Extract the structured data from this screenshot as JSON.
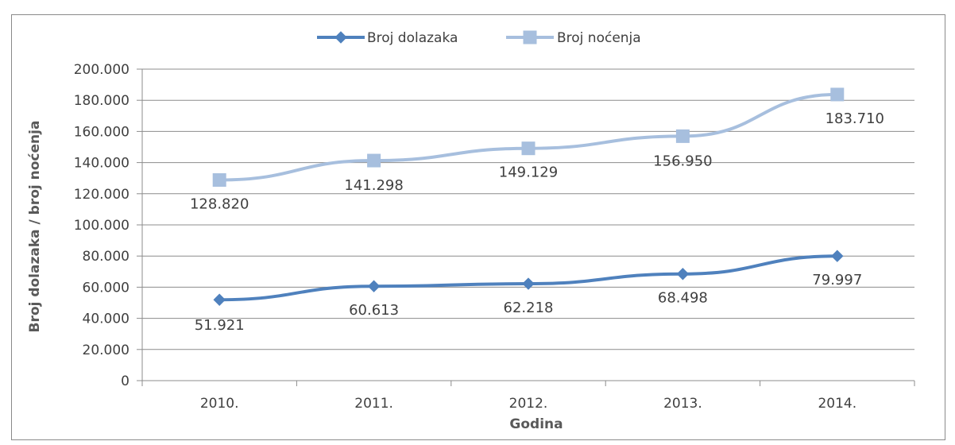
{
  "chart_data": {
    "type": "line",
    "categories": [
      "2010.",
      "2011.",
      "2012.",
      "2013.",
      "2014."
    ],
    "series": [
      {
        "name": "Broj dolazaka",
        "values": [
          51921,
          60613,
          62218,
          68498,
          79997
        ],
        "labels": [
          "51.921",
          "60.613",
          "62.218",
          "68.498",
          "79.997"
        ],
        "color": "#4F81BD",
        "marker": "diamond"
      },
      {
        "name": "Broj noćenja",
        "values": [
          128820,
          141298,
          149129,
          156950,
          183710
        ],
        "labels": [
          "128.820",
          "141.298",
          "149.129",
          "156.950",
          "183.710"
        ],
        "color": "#A7BFDE",
        "marker": "square"
      }
    ],
    "xlabel": "Godina",
    "ylabel": "Broj dolazaka / broj noćenja",
    "ylim": [
      0,
      200000
    ],
    "yticks": [
      "0",
      "20.000",
      "40.000",
      "60.000",
      "80.000",
      "100.000",
      "120.000",
      "140.000",
      "160.000",
      "180.000",
      "200.000"
    ],
    "grid": true,
    "legend": "top"
  }
}
